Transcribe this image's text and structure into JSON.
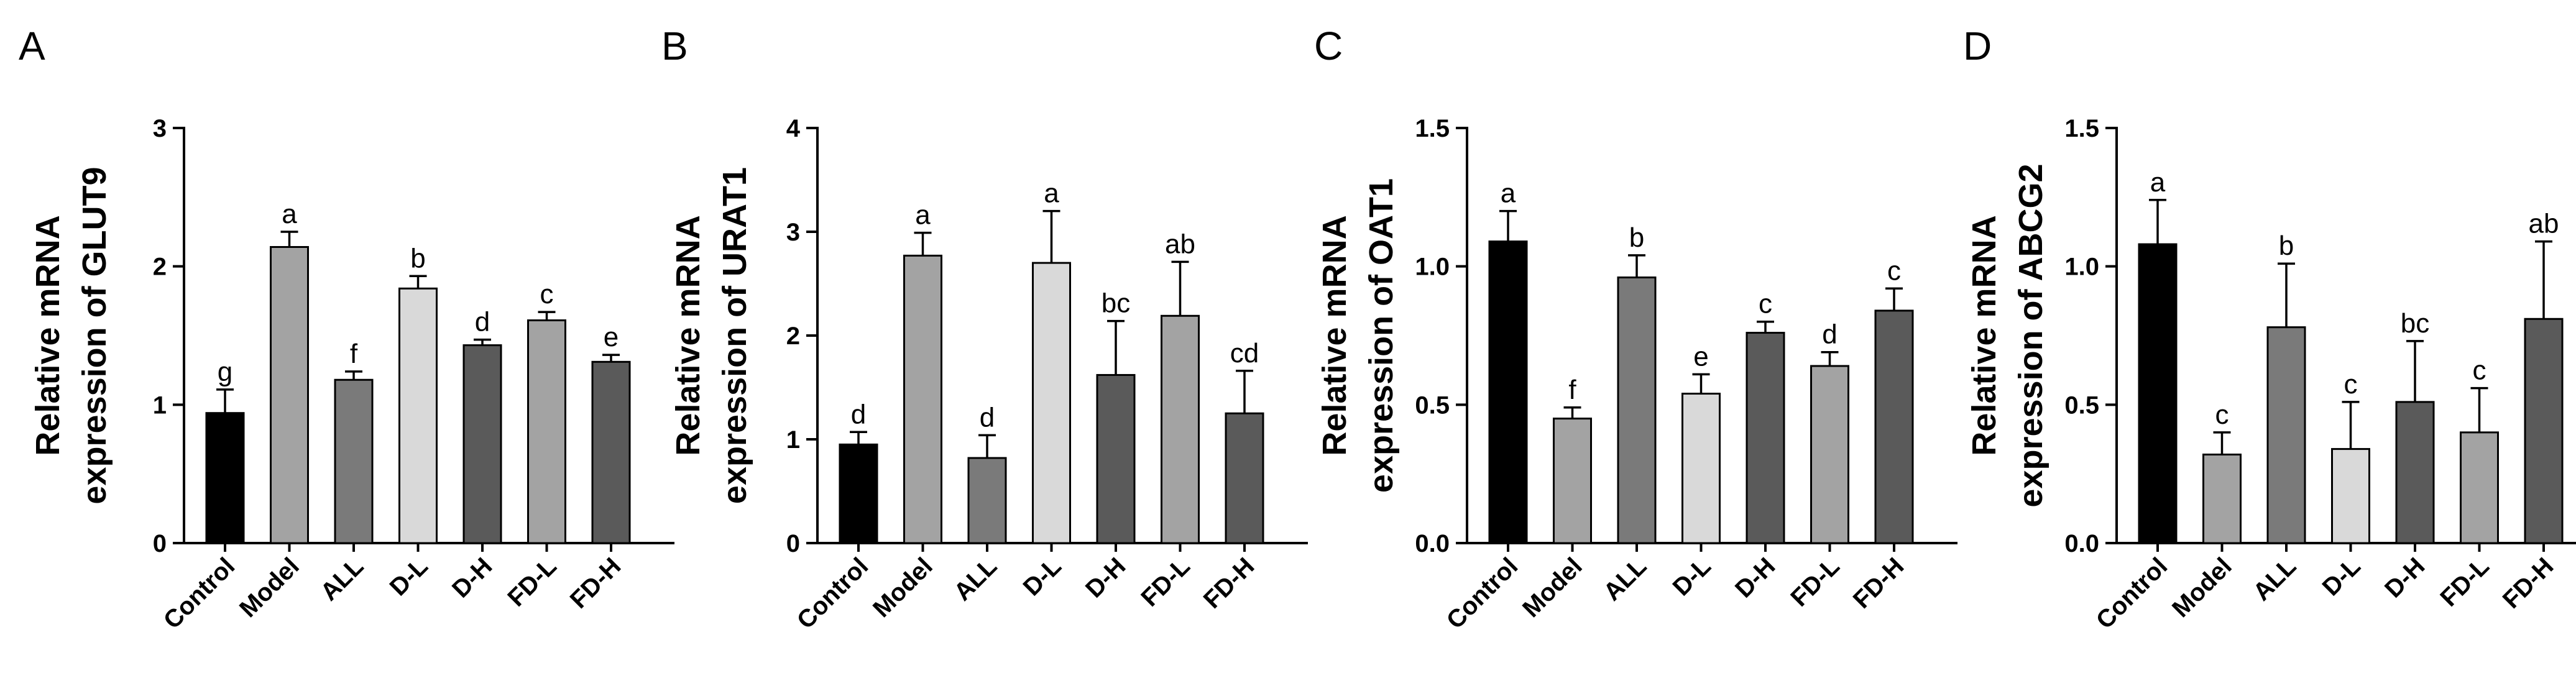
{
  "colors": [
    "#000000",
    "#a3a3a3",
    "#7a7a7a",
    "#d9d9d9",
    "#5a5a5a",
    "#a3a3a3",
    "#5a5a5a"
  ],
  "chart_data": [
    {
      "type": "bar",
      "panel": "A",
      "ylabel_line1": "Relative mRNA",
      "ylabel_line2": "expression of GLUT9",
      "categories": [
        "Control",
        "Model",
        "ALL",
        "D-L",
        "D-H",
        "FD-L",
        "FD-H"
      ],
      "values": [
        0.94,
        2.14,
        1.18,
        1.84,
        1.43,
        1.61,
        1.31
      ],
      "errors": [
        0.17,
        0.11,
        0.06,
        0.09,
        0.04,
        0.06,
        0.05
      ],
      "labels": [
        "g",
        "a",
        "f",
        "b",
        "d",
        "c",
        "e"
      ],
      "ylim": [
        0,
        3
      ],
      "yticks": [
        "0",
        "1",
        "2",
        "3"
      ],
      "ytick_values": [
        0,
        1,
        2,
        3
      ]
    },
    {
      "type": "bar",
      "panel": "B",
      "ylabel_line1": "Relative mRNA",
      "ylabel_line2": "expression of URAT1",
      "categories": [
        "Control",
        "Model",
        "ALL",
        "D-L",
        "D-H",
        "FD-L",
        "FD-H"
      ],
      "values": [
        0.95,
        2.77,
        0.82,
        2.7,
        1.62,
        2.19,
        1.25
      ],
      "errors": [
        0.12,
        0.22,
        0.22,
        0.5,
        0.52,
        0.52,
        0.41
      ],
      "labels": [
        "d",
        "a",
        "d",
        "a",
        "bc",
        "ab",
        "cd"
      ],
      "ylim": [
        0,
        4
      ],
      "yticks": [
        "0",
        "1",
        "2",
        "3",
        "4"
      ],
      "ytick_values": [
        0,
        1,
        2,
        3,
        4
      ]
    },
    {
      "type": "bar",
      "panel": "C",
      "ylabel_line1": "Relative mRNA",
      "ylabel_line2": "expression of OAT1",
      "categories": [
        "Control",
        "Model",
        "ALL",
        "D-L",
        "D-H",
        "FD-L",
        "FD-H"
      ],
      "values": [
        1.09,
        0.45,
        0.96,
        0.54,
        0.76,
        0.64,
        0.84
      ],
      "errors": [
        0.11,
        0.04,
        0.08,
        0.07,
        0.04,
        0.05,
        0.08
      ],
      "labels": [
        "a",
        "f",
        "b",
        "e",
        "c",
        "d",
        "c"
      ],
      "ylim": [
        0,
        1.5
      ],
      "yticks": [
        "0.0",
        "0.5",
        "1.0",
        "1.5"
      ],
      "ytick_values": [
        0,
        0.5,
        1.0,
        1.5
      ]
    },
    {
      "type": "bar",
      "panel": "D",
      "ylabel_line1": "Relative mRNA",
      "ylabel_line2": "expression of ABCG2",
      "categories": [
        "Control",
        "Model",
        "ALL",
        "D-L",
        "D-H",
        "FD-L",
        "FD-H"
      ],
      "values": [
        1.08,
        0.32,
        0.78,
        0.34,
        0.51,
        0.4,
        0.81
      ],
      "errors": [
        0.16,
        0.08,
        0.23,
        0.17,
        0.22,
        0.16,
        0.28
      ],
      "labels": [
        "a",
        "c",
        "b",
        "c",
        "bc",
        "c",
        "ab"
      ],
      "ylim": [
        0,
        1.5
      ],
      "yticks": [
        "0.0",
        "0.5",
        "1.0",
        "1.5"
      ],
      "ytick_values": [
        0,
        0.5,
        1.0,
        1.5
      ]
    }
  ]
}
